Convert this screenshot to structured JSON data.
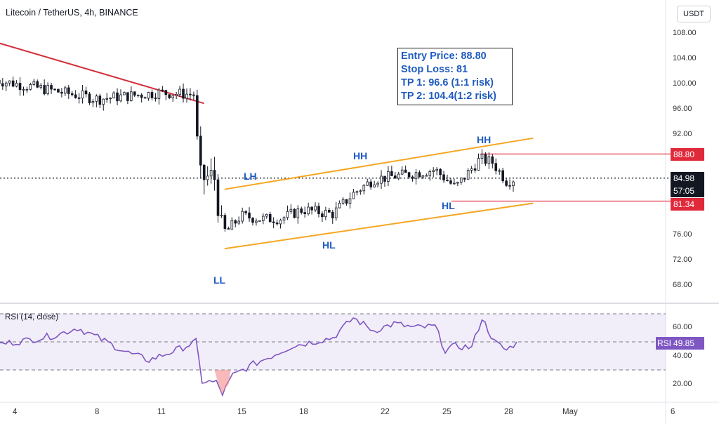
{
  "header": {
    "title": "Litecoin / TetherUS, 4h, BINANCE",
    "currency_button": "USDT"
  },
  "info_box": {
    "entry": "Entry Price: 88.80",
    "stop": "Stop Loss: 81",
    "tp1": "TP 1: 96.6 (1:1 risk)",
    "tp2": "TP 2: 104.4(1:2 risk)"
  },
  "labels": {
    "ll": "LL",
    "lh": "LH",
    "hl1": "HL",
    "hh1": "HH",
    "hh2": "HH",
    "hl2": "HL"
  },
  "price_tags": {
    "entry": "88.80",
    "current": "84.98",
    "countdown": "57:05",
    "stop": "81.34",
    "rsi_label": "RSI",
    "rsi_value": "49.85"
  },
  "rsi_title": "RSI (14, close)",
  "colors": {
    "up": "#131722",
    "down_trend": "#d32f3a",
    "channel": "#f5a623",
    "label_blue": "#1f5bbf",
    "rsi_line": "#7e57c2",
    "tag_red": "#e0293a",
    "tag_dark": "#131722"
  },
  "chart_data": [
    {
      "type": "candlestick",
      "title": "Litecoin / TetherUS, 4h, BINANCE",
      "x_ticks": [
        "4",
        "8",
        "11",
        "15",
        "18",
        "22",
        "25",
        "28",
        "May",
        "6"
      ],
      "y_ticks": [
        "108.00",
        "104.00",
        "100.00",
        "96.00",
        "92.00",
        "76.00",
        "72.00",
        "68.00"
      ],
      "ylim": [
        66,
        110
      ],
      "current_price": 84.98,
      "levels": {
        "entry": 88.8,
        "stop": 81.34
      },
      "close_path": [
        {
          "x": 3,
          "y": 100.5
        },
        {
          "x": 8,
          "y": 97.5
        },
        {
          "x": 11,
          "y": 98.5
        },
        {
          "x": 12.7,
          "y": 98.2
        },
        {
          "x": 13.0,
          "y": 84.9
        },
        {
          "x": 13.7,
          "y": 85.2
        },
        {
          "x": 14.1,
          "y": 75.8
        },
        {
          "x": 15,
          "y": 79.0
        },
        {
          "x": 16,
          "y": 78.5
        },
        {
          "x": 17,
          "y": 78.6
        },
        {
          "x": 18,
          "y": 80.0
        },
        {
          "x": 19.5,
          "y": 79.3
        },
        {
          "x": 20.5,
          "y": 82.5
        },
        {
          "x": 21.5,
          "y": 84.8
        },
        {
          "x": 23,
          "y": 85.5
        },
        {
          "x": 24.5,
          "y": 86.3
        },
        {
          "x": 25.5,
          "y": 83.5
        },
        {
          "x": 26.7,
          "y": 88.0
        },
        {
          "x": 27.3,
          "y": 87.5
        },
        {
          "x": 28.0,
          "y": 84.5
        },
        {
          "x": 28.5,
          "y": 85.0
        }
      ],
      "trendlines": [
        {
          "name": "downtrend",
          "from": {
            "x": 3,
            "y": 106.5
          },
          "to": {
            "x": 13.2,
            "y": 96.8
          }
        },
        {
          "name": "channel-upper",
          "from": {
            "x": 14.2,
            "y": 83.2
          },
          "to": {
            "x": 29.3,
            "y": 91.3
          }
        },
        {
          "name": "channel-lower",
          "from": {
            "x": 14.2,
            "y": 73.8
          },
          "to": {
            "x": 29.3,
            "y": 81.0
          }
        }
      ]
    },
    {
      "type": "line",
      "title": "RSI (14, close)",
      "y_ticks": [
        "60.00",
        "40.00",
        "20.00"
      ],
      "ylim": [
        10,
        70
      ],
      "bands": [
        30,
        50,
        70
      ],
      "current_value": 49.85,
      "values": [
        {
          "x": 3,
          "y": 48
        },
        {
          "x": 4.5,
          "y": 51
        },
        {
          "x": 6,
          "y": 55
        },
        {
          "x": 7,
          "y": 60
        },
        {
          "x": 8,
          "y": 53
        },
        {
          "x": 9.5,
          "y": 42
        },
        {
          "x": 10.5,
          "y": 37
        },
        {
          "x": 12,
          "y": 45
        },
        {
          "x": 12.8,
          "y": 50
        },
        {
          "x": 13.1,
          "y": 22
        },
        {
          "x": 13.8,
          "y": 21
        },
        {
          "x": 14.1,
          "y": 13
        },
        {
          "x": 14.6,
          "y": 26
        },
        {
          "x": 15.6,
          "y": 34
        },
        {
          "x": 16.5,
          "y": 40
        },
        {
          "x": 17.5,
          "y": 47
        },
        {
          "x": 18.5,
          "y": 50
        },
        {
          "x": 19.5,
          "y": 53
        },
        {
          "x": 20.5,
          "y": 67
        },
        {
          "x": 21.5,
          "y": 58
        },
        {
          "x": 22.5,
          "y": 63
        },
        {
          "x": 23.5,
          "y": 60
        },
        {
          "x": 24.5,
          "y": 61
        },
        {
          "x": 25,
          "y": 44
        },
        {
          "x": 25.5,
          "y": 47
        },
        {
          "x": 26.3,
          "y": 46
        },
        {
          "x": 26.8,
          "y": 67
        },
        {
          "x": 27.4,
          "y": 50
        },
        {
          "x": 28.0,
          "y": 44
        },
        {
          "x": 28.5,
          "y": 50
        }
      ]
    }
  ]
}
